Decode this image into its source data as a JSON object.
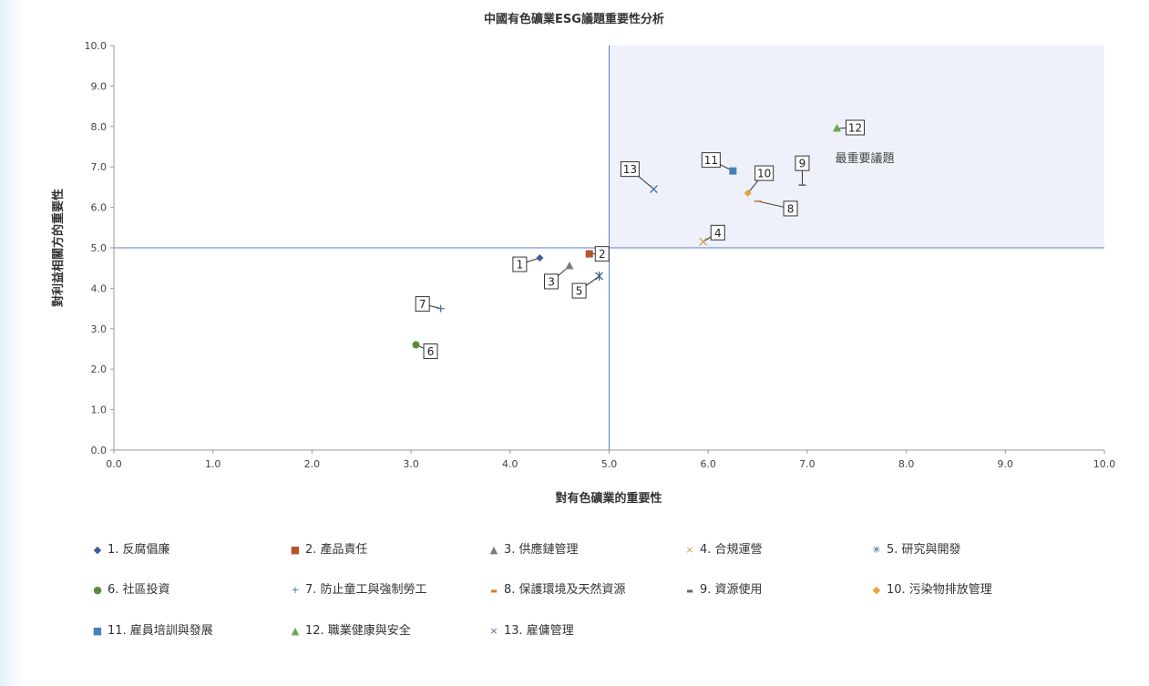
{
  "chart_data": {
    "type": "scatter",
    "title": "中國有色礦業ESG議題重要性分析",
    "xlabel": "對有色礦業的重要性",
    "ylabel": "對利益相關方的重要性",
    "xlim": [
      0,
      10
    ],
    "ylim": [
      0,
      10
    ],
    "x_ticks": [
      "0.0",
      "1.0",
      "2.0",
      "3.0",
      "4.0",
      "5.0",
      "6.0",
      "7.0",
      "8.0",
      "9.0",
      "10.0"
    ],
    "y_ticks": [
      "0.0",
      "1.0",
      "2.0",
      "3.0",
      "4.0",
      "5.0",
      "6.0",
      "7.0",
      "8.0",
      "9.0",
      "10.0"
    ],
    "divider_x": 5.0,
    "divider_y": 5.0,
    "quadrant_label": "最重要議題",
    "grid": false,
    "legend_position": "bottom",
    "series": [
      {
        "id": "1",
        "name": "1. 反腐倡廉",
        "x": 4.3,
        "y": 4.75,
        "marker": "diamond",
        "color": "#3a5a9c"
      },
      {
        "id": "2",
        "name": "2. 產品責任",
        "x": 4.8,
        "y": 4.85,
        "marker": "square",
        "color": "#b5532c"
      },
      {
        "id": "3",
        "name": "3. 供應鏈管理",
        "x": 4.6,
        "y": 4.55,
        "marker": "triangle",
        "color": "#7b7b7b"
      },
      {
        "id": "4",
        "name": "4. 合規運營",
        "x": 5.95,
        "y": 5.15,
        "marker": "x",
        "color": "#c9a24a"
      },
      {
        "id": "5",
        "name": "5. 研究與開發",
        "x": 4.9,
        "y": 4.3,
        "marker": "star",
        "color": "#2f5d8a"
      },
      {
        "id": "6",
        "name": "6. 社區投資",
        "x": 3.05,
        "y": 2.6,
        "marker": "circle",
        "color": "#5b8a3c"
      },
      {
        "id": "7",
        "name": "7. 防止童工與強制勞工",
        "x": 3.3,
        "y": 3.5,
        "marker": "plus",
        "color": "#4a6fa5"
      },
      {
        "id": "8",
        "name": "8. 保護環境及天然資源",
        "x": 6.5,
        "y": 6.15,
        "marker": "dash",
        "color": "#d07a2c"
      },
      {
        "id": "9",
        "name": "9. 資源使用",
        "x": 6.95,
        "y": 6.55,
        "marker": "dash",
        "color": "#666666"
      },
      {
        "id": "10",
        "name": "10. 污染物排放管理",
        "x": 6.4,
        "y": 6.35,
        "marker": "diamond",
        "color": "#e8a33a"
      },
      {
        "id": "11",
        "name": "11. 雇員培訓與發展",
        "x": 6.25,
        "y": 6.9,
        "marker": "square",
        "color": "#4a7fb5"
      },
      {
        "id": "12",
        "name": "12. 職業健康與安全",
        "x": 7.3,
        "y": 7.95,
        "marker": "triangle",
        "color": "#6aa84f"
      },
      {
        "id": "13",
        "name": "13. 雇傭管理",
        "x": 5.45,
        "y": 6.45,
        "marker": "x",
        "color": "#4a6fa5"
      }
    ]
  }
}
